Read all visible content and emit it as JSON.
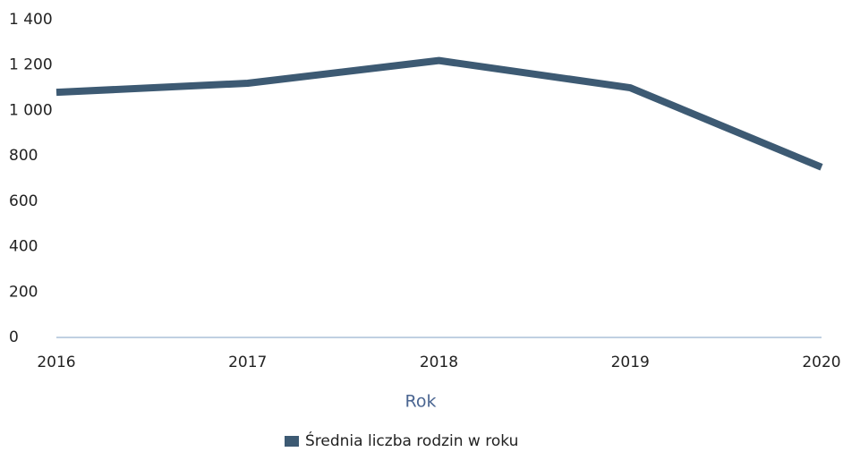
{
  "chart_data": {
    "type": "line",
    "categories": [
      "2016",
      "2017",
      "2018",
      "2019",
      "2020"
    ],
    "series": [
      {
        "name": "Średnia liczba rodzin w roku",
        "color": "#3d5a73",
        "values": [
          1080,
          1120,
          1220,
          1100,
          750
        ]
      }
    ],
    "ylim": [
      0,
      1400
    ],
    "yticks": [
      0,
      200,
      400,
      600,
      800,
      {
        "value": 1000,
        "label": "1 000"
      },
      {
        "value": 1200,
        "label": "1 200"
      },
      {
        "value": 1400,
        "label": "1 400"
      }
    ],
    "xlabel": "Rok",
    "grid": false,
    "legend": "bottom"
  }
}
